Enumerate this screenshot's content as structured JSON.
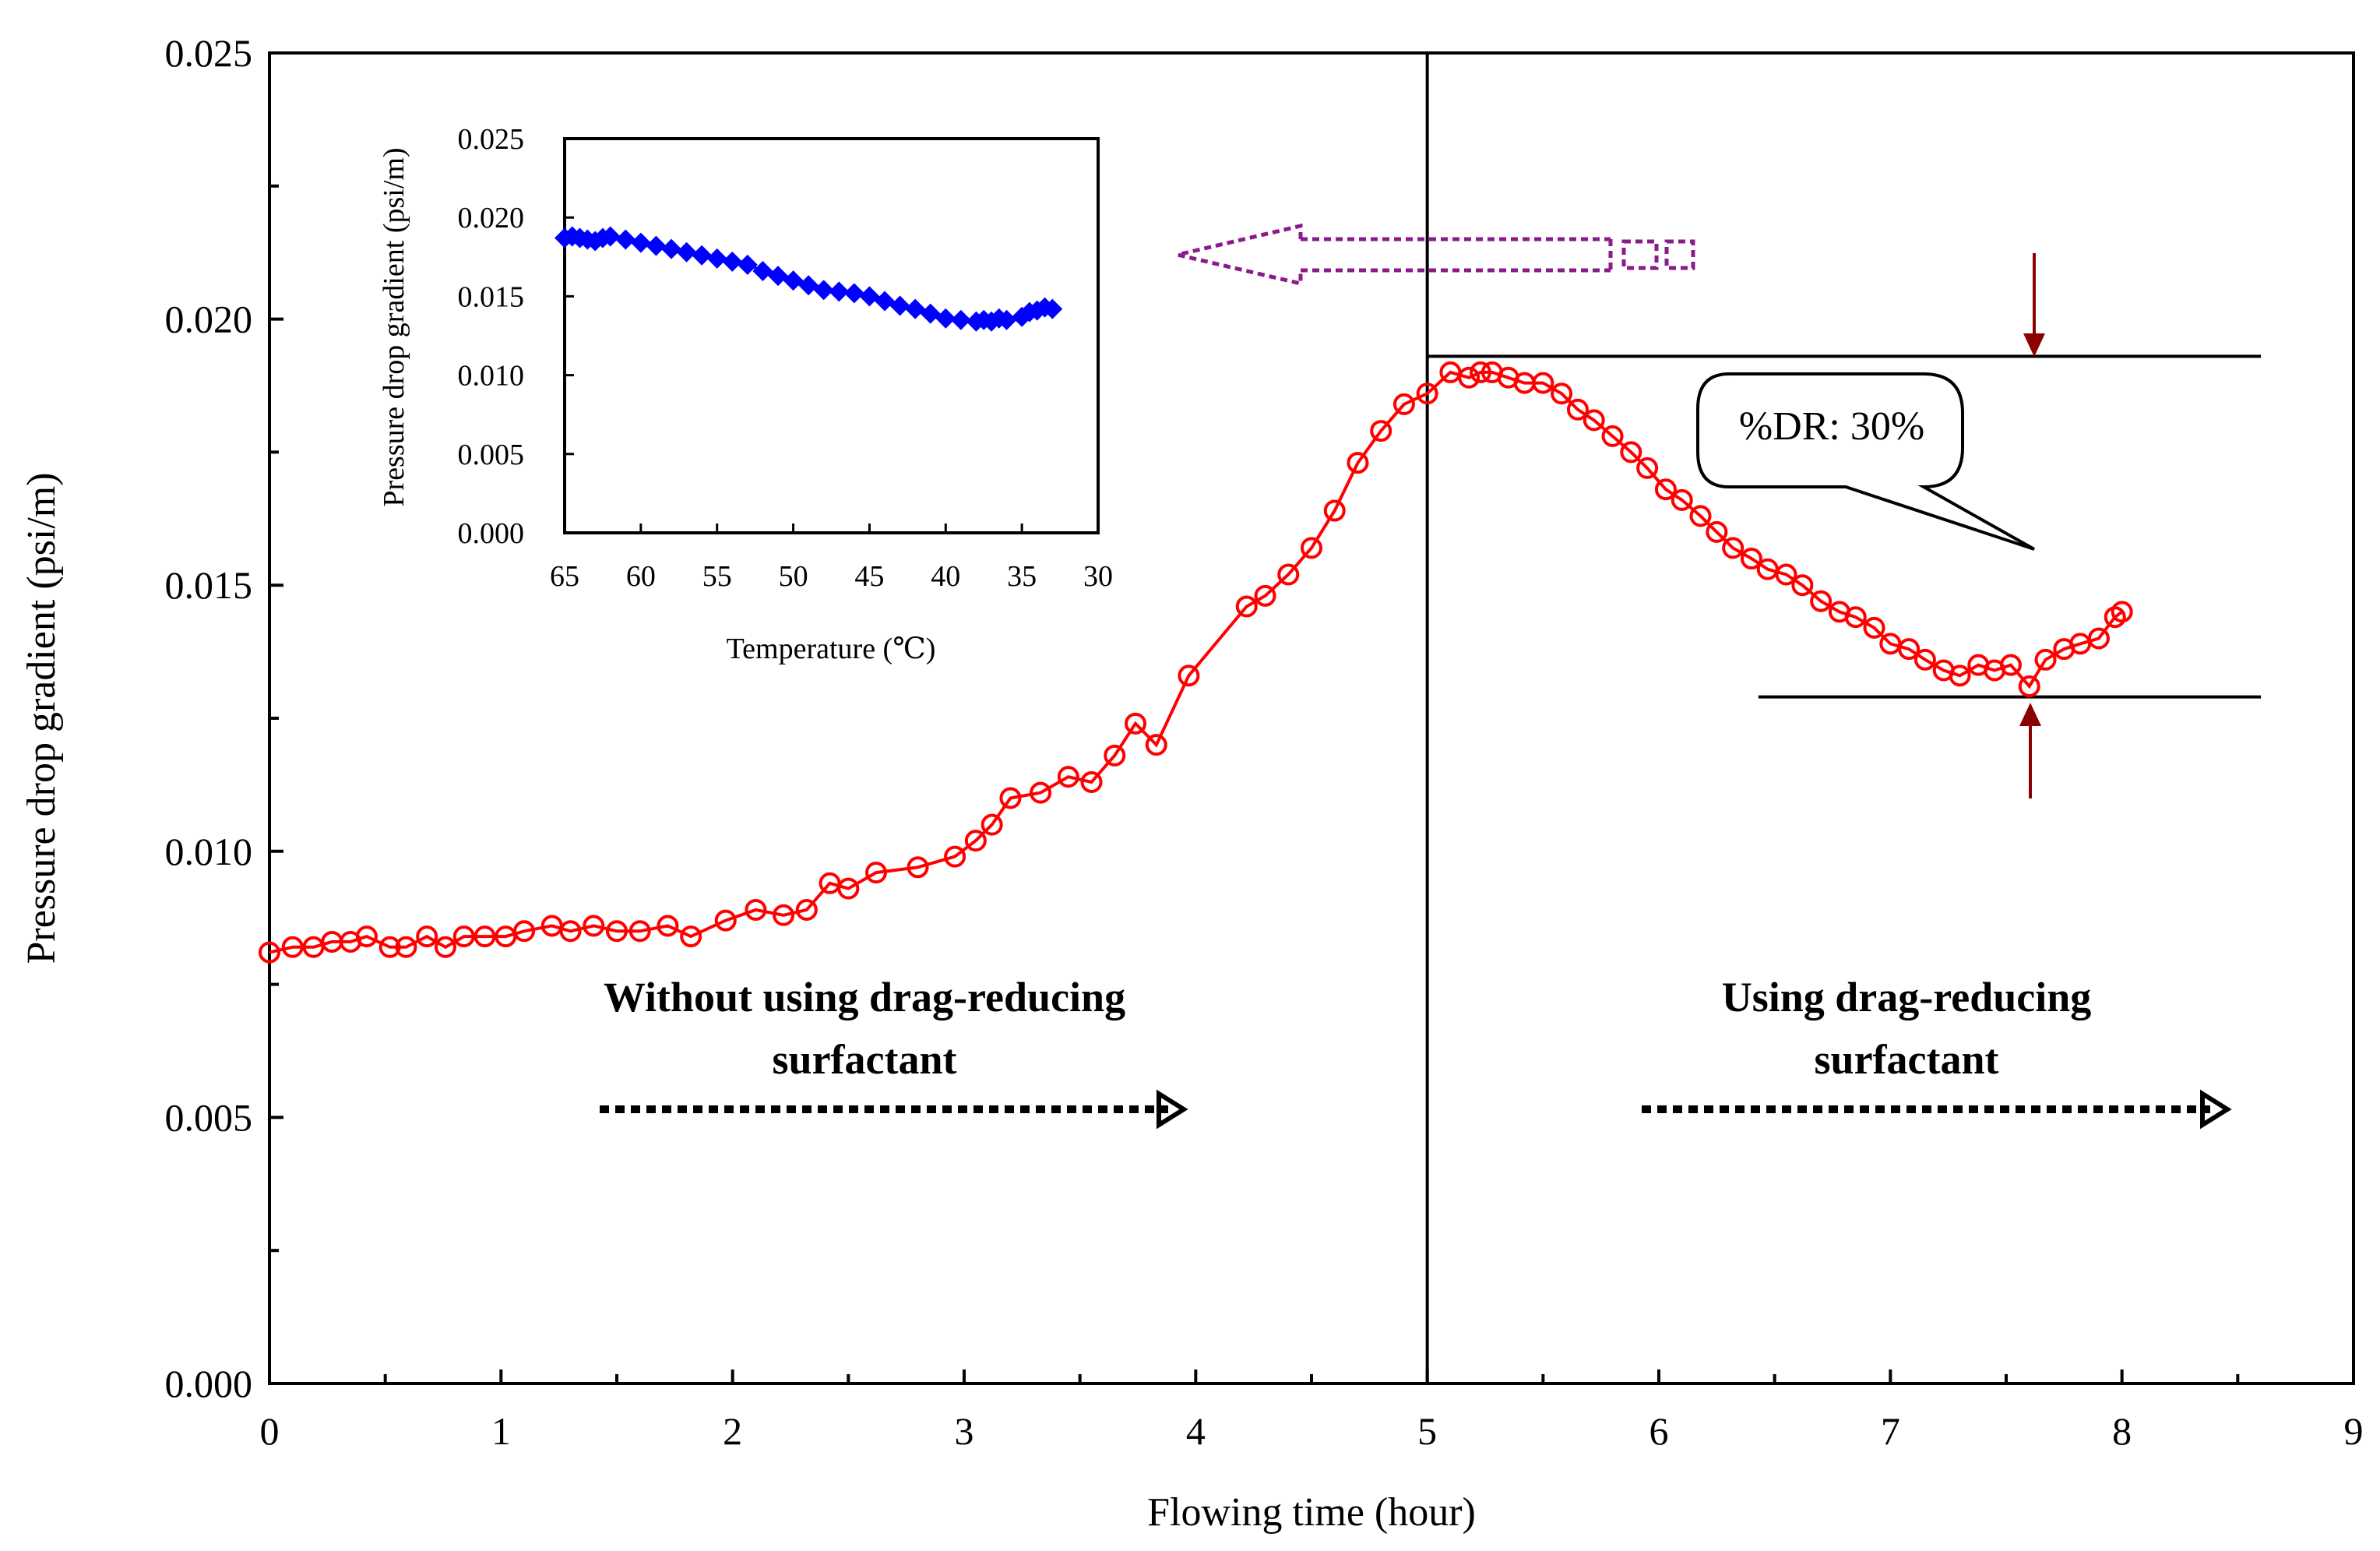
{
  "colors": {
    "main_series": "#ff0000",
    "inset_series": "#0000ff",
    "arrow_dr": "#8b0000",
    "inset_arrow": "#8b1a8b",
    "axes": "#000000"
  },
  "chart_data": [
    {
      "type": "line",
      "title": "",
      "xlabel": "Flowing time (hour)",
      "ylabel": "Pressure drop gradient (psi/m)",
      "xlim": [
        0,
        9
      ],
      "ylim": [
        0,
        0.025
      ],
      "xticks": [
        "0",
        "1",
        "2",
        "3",
        "4",
        "5",
        "6",
        "7",
        "8",
        "9"
      ],
      "yticks": [
        "0.000",
        "0.005",
        "0.010",
        "0.015",
        "0.020",
        "0.025"
      ],
      "marker": "open-circle",
      "series": [
        {
          "name": "Pressure drop gradient",
          "x": [
            0.0,
            0.1,
            0.19,
            0.27,
            0.35,
            0.42,
            0.52,
            0.59,
            0.68,
            0.76,
            0.84,
            0.93,
            1.02,
            1.1,
            1.22,
            1.3,
            1.4,
            1.5,
            1.6,
            1.72,
            1.82,
            1.97,
            2.1,
            2.22,
            2.32,
            2.42,
            2.5,
            2.62,
            2.8,
            2.96,
            3.05,
            3.12,
            3.2,
            3.33,
            3.45,
            3.55,
            3.65,
            3.74,
            3.83,
            3.97,
            4.22,
            4.3,
            4.4,
            4.5,
            4.6,
            4.7,
            4.8,
            4.9,
            5.0,
            5.1,
            5.18,
            5.23,
            5.28,
            5.35,
            5.42,
            5.5,
            5.58,
            5.65,
            5.72,
            5.8,
            5.88,
            5.95,
            6.03,
            6.1,
            6.18,
            6.25,
            6.32,
            6.4,
            6.47,
            6.55,
            6.62,
            6.7,
            6.78,
            6.85,
            6.93,
            7.0,
            7.08,
            7.15,
            7.23,
            7.3,
            7.38,
            7.45,
            7.52,
            7.6,
            7.67,
            7.75,
            7.82,
            7.9,
            7.97,
            8.0
          ],
          "values": [
            0.0081,
            0.0082,
            0.0082,
            0.0083,
            0.0083,
            0.0084,
            0.0082,
            0.0082,
            0.0084,
            0.0082,
            0.0084,
            0.0084,
            0.0084,
            0.0085,
            0.0086,
            0.0085,
            0.0086,
            0.0085,
            0.0085,
            0.0086,
            0.0084,
            0.0087,
            0.0089,
            0.0088,
            0.0089,
            0.0094,
            0.0093,
            0.0096,
            0.0097,
            0.0099,
            0.0102,
            0.0105,
            0.011,
            0.0111,
            0.0114,
            0.0113,
            0.0118,
            0.0124,
            0.012,
            0.0133,
            0.0146,
            0.0148,
            0.0152,
            0.0157,
            0.0164,
            0.0173,
            0.0179,
            0.0184,
            0.0186,
            0.019,
            0.0189,
            0.019,
            0.019,
            0.0189,
            0.0188,
            0.0188,
            0.0186,
            0.0183,
            0.0181,
            0.0178,
            0.0175,
            0.0172,
            0.0168,
            0.0166,
            0.0163,
            0.016,
            0.0157,
            0.0155,
            0.0153,
            0.0152,
            0.015,
            0.0147,
            0.0145,
            0.0144,
            0.0142,
            0.0139,
            0.0138,
            0.0136,
            0.0134,
            0.0133,
            0.0135,
            0.0134,
            0.0135,
            0.0131,
            0.0136,
            0.0138,
            0.0139,
            0.014,
            0.0144,
            0.0145
          ]
        }
      ],
      "reference_lines": {
        "vertical_x": 5.0,
        "upper_level": 0.0193,
        "lower_level": 0.0129
      },
      "annotations": {
        "callout": "%DR: 30%",
        "region_left": [
          "Without using drag-reducing",
          "surfactant"
        ],
        "region_right": [
          "Using drag-reducing",
          "surfactant"
        ]
      }
    },
    {
      "type": "line",
      "title": "",
      "xlabel": "Temperature (℃)",
      "ylabel": "Pressure drop gradient (psi/m)",
      "xlim": [
        65,
        30
      ],
      "ylim": [
        0,
        0.025
      ],
      "xticks": [
        "65",
        "60",
        "55",
        "50",
        "45",
        "40",
        "35",
        "30"
      ],
      "yticks": [
        "0.000",
        "0.005",
        "0.010",
        "0.015",
        "0.020",
        "0.025"
      ],
      "marker": "filled-diamond",
      "series": [
        {
          "name": "Pressure drop gradient vs temperature",
          "x": [
            65,
            64.5,
            64,
            63.5,
            63,
            62.5,
            62,
            61,
            60,
            59,
            58,
            57,
            56,
            55,
            54,
            53,
            52,
            51,
            50,
            49,
            48,
            47,
            46,
            45,
            44,
            43,
            42,
            41,
            40,
            39,
            38,
            37.5,
            37,
            36.5,
            36,
            35,
            34.5,
            34,
            33.5,
            33
          ],
          "values": [
            0.0187,
            0.0188,
            0.0187,
            0.0186,
            0.0185,
            0.0187,
            0.0188,
            0.0186,
            0.0184,
            0.0182,
            0.018,
            0.0178,
            0.0176,
            0.0174,
            0.0172,
            0.017,
            0.0166,
            0.0163,
            0.016,
            0.0157,
            0.0154,
            0.0153,
            0.0152,
            0.015,
            0.0147,
            0.0144,
            0.0142,
            0.0139,
            0.0136,
            0.0135,
            0.0134,
            0.0135,
            0.0134,
            0.0136,
            0.0135,
            0.0137,
            0.014,
            0.0141,
            0.0143,
            0.0142
          ]
        }
      ]
    }
  ]
}
